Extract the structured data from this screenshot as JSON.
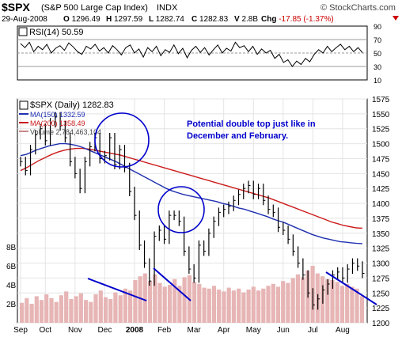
{
  "header": {
    "symbol": "$SPX",
    "name": "(S&P 500 Large Cap Index)",
    "exchange": "INDX",
    "source": "© StockCharts.com",
    "date": "29-Aug-2008",
    "quote": [
      {
        "label": "O",
        "value": "1296.49"
      },
      {
        "label": "H",
        "value": "1297.59"
      },
      {
        "label": "L",
        "value": "1282.74"
      },
      {
        "label": "C",
        "value": "1282.83"
      },
      {
        "label": "V",
        "value": "2.8B"
      },
      {
        "label": "Chg",
        "value": "-17.85 (-1.37%)"
      }
    ],
    "chg_color": "#cc0000",
    "down_arrow": "down-triangle"
  },
  "chart_data": [
    {
      "type": "line",
      "panel": "RSI",
      "legend": "RSI(14) 50.59",
      "value": 50.59,
      "ylim": [
        10,
        90
      ],
      "y_ticks": [
        "90",
        "70",
        "50",
        "30",
        "10"
      ],
      "reference_lines": [
        70,
        50,
        30
      ],
      "series": [
        {
          "values": [
            64,
            58,
            66,
            52,
            60,
            55,
            63,
            50,
            57,
            61,
            54,
            65,
            59,
            52,
            48,
            60,
            56,
            63,
            53,
            58,
            50,
            61,
            55,
            47,
            58,
            62,
            50,
            56,
            44,
            58,
            52,
            60,
            46,
            55,
            51,
            62,
            49,
            57,
            43,
            54,
            60,
            51,
            58,
            47,
            55,
            62,
            50,
            57,
            53,
            66,
            58,
            61,
            52,
            60,
            48,
            56,
            50,
            54,
            42,
            48,
            36,
            40,
            30,
            38,
            33,
            42,
            37,
            48,
            55,
            50,
            60,
            52,
            58,
            63,
            55,
            60,
            52,
            58,
            50.59
          ]
        }
      ],
      "color": "#000000"
    },
    {
      "type": "line",
      "panel": "price",
      "title": "$SPX (Daily) 1282.83",
      "ylim": [
        1200,
        1575
      ],
      "y_ticks": [
        "1575",
        "1550",
        "1525",
        "1500",
        "1475",
        "1450",
        "1425",
        "1400",
        "1375",
        "1350",
        "1325",
        "1300",
        "1275",
        "1250",
        "1225",
        "1200"
      ],
      "x_ticks": [
        "Sep",
        "Oct",
        "Nov",
        "Dec",
        "2008",
        "Feb",
        "Mar",
        "Apr",
        "May",
        "Jun",
        "Jul",
        "Aug"
      ],
      "x_tick_index": [
        0,
        5,
        11,
        17,
        23,
        29,
        35,
        41,
        47,
        53,
        59,
        65
      ],
      "x_label_2008_bold": true,
      "legend": [
        {
          "label": "MA(150) 1332.59",
          "color": "#1f2fb0"
        },
        {
          "label": "MA(200) 1358.49",
          "color": "#cc1a1a"
        },
        {
          "label": "Volume 2,784,463,104",
          "color": "#c88a8a"
        }
      ],
      "series": [
        {
          "name": "price",
          "color": "#000000",
          "values": [
            1470,
            1455,
            1490,
            1515,
            1525,
            1505,
            1535,
            1545,
            1530,
            1510,
            1470,
            1450,
            1425,
            1470,
            1495,
            1510,
            1475,
            1480,
            1510,
            1465,
            1490,
            1460,
            1420,
            1380,
            1330,
            1300,
            1270,
            1345,
            1355,
            1340,
            1380,
            1380,
            1370,
            1320,
            1290,
            1275,
            1330,
            1320,
            1350,
            1370,
            1385,
            1390,
            1395,
            1405,
            1415,
            1425,
            1430,
            1415,
            1425,
            1405,
            1390,
            1385,
            1360,
            1355,
            1340,
            1320,
            1300,
            1280,
            1250,
            1230,
            1240,
            1255,
            1265,
            1280,
            1285,
            1275,
            1290,
            1300,
            1295,
            1282.83
          ]
        },
        {
          "name": "MA(150)",
          "color": "#1f2fb0",
          "values": [
            1480,
            1482,
            1486,
            1490,
            1493,
            1496,
            1498,
            1500,
            1500,
            1499,
            1497,
            1494,
            1490,
            1486,
            1482,
            1478,
            1474,
            1470,
            1465,
            1460,
            1455,
            1450,
            1445,
            1440,
            1435,
            1430,
            1425,
            1421,
            1418,
            1415,
            1413,
            1411,
            1409,
            1407,
            1405,
            1403,
            1400,
            1398,
            1395,
            1392,
            1390,
            1387,
            1384,
            1381,
            1378,
            1374,
            1371,
            1368,
            1364,
            1360,
            1356,
            1352,
            1348,
            1345,
            1342,
            1340,
            1338,
            1336,
            1335,
            1334,
            1333,
            1332.59
          ]
        },
        {
          "name": "MA(200)",
          "color": "#cc1a1a",
          "values": [
            1455,
            1460,
            1466,
            1472,
            1477,
            1482,
            1486,
            1489,
            1491,
            1492,
            1492,
            1491,
            1489,
            1487,
            1485,
            1483,
            1481,
            1478,
            1475,
            1472,
            1469,
            1466,
            1463,
            1460,
            1457,
            1454,
            1451,
            1448,
            1445,
            1442,
            1439,
            1436,
            1433,
            1430,
            1427,
            1424,
            1421,
            1418,
            1415,
            1412,
            1409,
            1405,
            1401,
            1397,
            1393,
            1389,
            1385,
            1381,
            1377,
            1373,
            1369,
            1366,
            1363,
            1361,
            1359,
            1358.49
          ]
        }
      ]
    },
    {
      "type": "bar",
      "panel": "volume",
      "y_ticks": [
        "8B",
        "6B",
        "4B",
        "2B"
      ],
      "ylim_billions": [
        0,
        9
      ],
      "color": "#e7b5b5",
      "values": [
        2.1,
        2.6,
        2.0,
        2.8,
        2.4,
        3.0,
        2.6,
        2.2,
        2.9,
        3.3,
        2.5,
        2.8,
        3.1,
        2.4,
        2.2,
        3.0,
        3.4,
        2.7,
        2.5,
        3.2,
        2.9,
        3.6,
        3.4,
        4.5,
        4.9,
        5.2,
        4.4,
        5.1,
        4.2,
        3.8,
        4.0,
        4.6,
        3.9,
        4.8,
        5.0,
        4.3,
        4.1,
        3.7,
        3.6,
        3.9,
        3.5,
        3.3,
        3.7,
        3.4,
        3.6,
        3.2,
        3.5,
        3.8,
        3.4,
        3.6,
        3.9,
        4.1,
        3.8,
        4.4,
        4.2,
        4.7,
        5.1,
        4.8,
        5.5,
        6.0,
        5.2,
        4.9,
        4.6,
        4.5,
        4.3,
        3.9,
        4.1,
        3.8,
        3.6,
        2.8
      ]
    }
  ],
  "annotation": {
    "text": "Potential double top just like in December and February.",
    "text_color": "#0000cc"
  }
}
